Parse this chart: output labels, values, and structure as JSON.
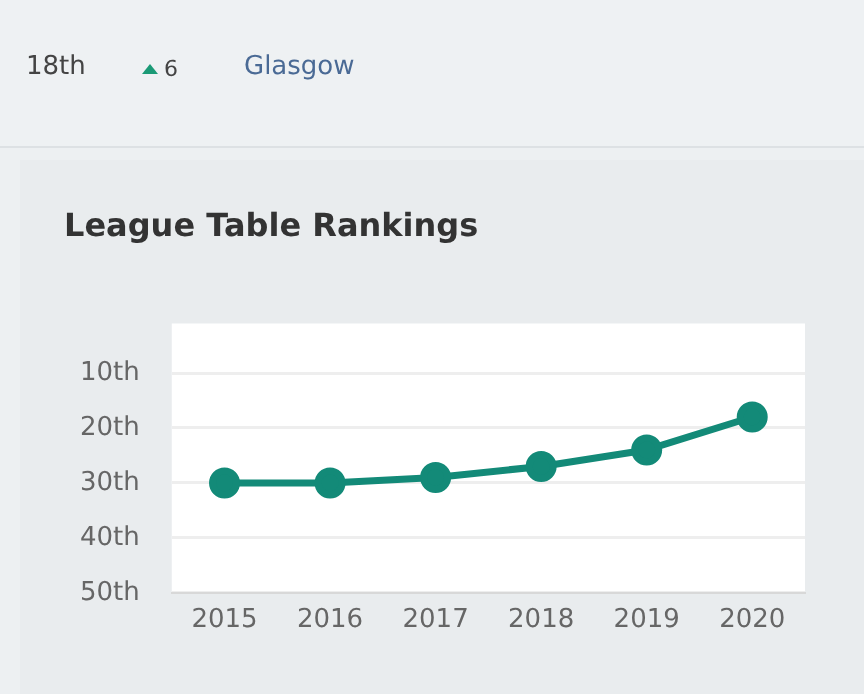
{
  "chart_data": {
    "type": "line",
    "title": "League Table Rankings",
    "annotations": [
      "18th",
      "6",
      "Glasgow"
    ],
    "categories": [
      "2015",
      "2016",
      "2017",
      "2018",
      "2019",
      "2020"
    ],
    "series": [
      {
        "color": "#138a78",
        "values": [
          30,
          30,
          29,
          27,
          24,
          18
        ]
      }
    ],
    "ylim": [
      50,
      1
    ],
    "yticks": [
      {
        "value": 10,
        "label": "10th"
      },
      {
        "value": 20,
        "label": "20th"
      },
      {
        "value": 30,
        "label": "30th"
      },
      {
        "value": 40,
        "label": "40th"
      },
      {
        "value": 50,
        "label": "50th"
      }
    ],
    "grid": "y",
    "legend": false,
    "marker": "circle",
    "line_style": "solid"
  }
}
